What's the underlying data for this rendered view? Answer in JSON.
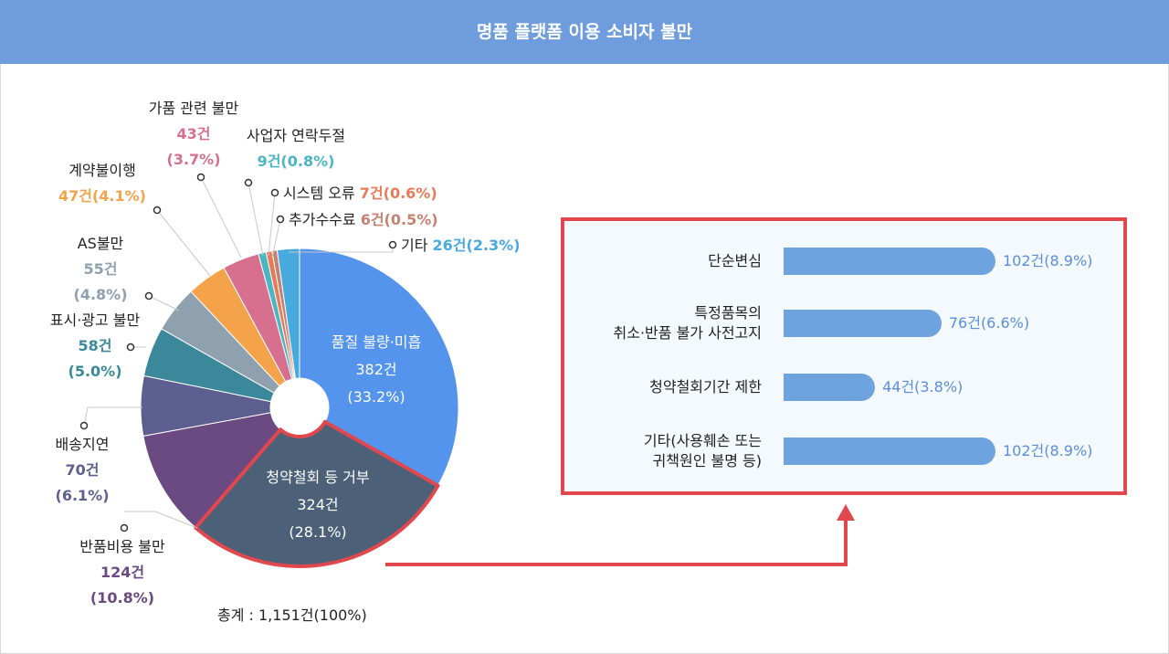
{
  "title": "명품 플랫폼 이용 소비자 불만",
  "total": "총계 : 1,151건(100%)",
  "chart_data": {
    "type": "pie",
    "title": "명품 플랫폼 이용 소비자 불만",
    "total": 1151,
    "slices": [
      {
        "name": "품질 불량·미흡",
        "value": 382,
        "count": "382건",
        "pct": "(33.2%)",
        "color": "#5594ec"
      },
      {
        "name": "청약철회 등 거부",
        "value": 324,
        "count": "324건",
        "pct": "(28.1%)",
        "color": "#4c6078"
      },
      {
        "name": "반품비용 불만",
        "value": 124,
        "count": "124건",
        "pct": "(10.8%)",
        "color": "#6b4a82"
      },
      {
        "name": "배송지연",
        "value": 70,
        "count": "70건",
        "pct": "(6.1%)",
        "color": "#5e5f91"
      },
      {
        "name": "표시·광고 불만",
        "value": 58,
        "count": "58건",
        "pct": "(5.0%)",
        "color": "#3a8899"
      },
      {
        "name": "AS불만",
        "value": 55,
        "count": "55건",
        "pct": "(4.8%)",
        "color": "#8fa0ae"
      },
      {
        "name": "계약불이행",
        "value": 47,
        "count": "47건",
        "pct": "(4.1%)",
        "color": "#f4a34a"
      },
      {
        "name": "가품 관련 불만",
        "value": 43,
        "count": "43건",
        "pct": "(3.7%)",
        "color": "#d7708f"
      },
      {
        "name": "사업자 연락두절",
        "value": 9,
        "count": "9건",
        "pct": "(0.8%)",
        "color": "#4bb5c4"
      },
      {
        "name": "시스템 오류",
        "value": 7,
        "count": "7건",
        "pct": "(0.6%)",
        "color": "#e77b57"
      },
      {
        "name": "추가수수료",
        "value": 6,
        "count": "6건",
        "pct": "(0.5%)",
        "color": "#c58171"
      },
      {
        "name": "기타",
        "value": 26,
        "count": "26건",
        "pct": "(2.3%)",
        "color": "#48a9de"
      }
    ],
    "detail": {
      "of": "청약철회 등 거부",
      "type": "bar",
      "items": [
        {
          "label": "단순변심",
          "value": 102,
          "text": "102건(8.9%)"
        },
        {
          "label": "특정품목의 취소·반품 불가 사전고지",
          "lines": [
            "특정품목의",
            "취소·반품 불가 사전고지"
          ],
          "value": 76,
          "text": "76건(6.6%)"
        },
        {
          "label": "청약철회기간 제한",
          "value": 44,
          "text": "44건(3.8%)"
        },
        {
          "label": "기타(사용훼손 또는 귀책원인 불명 등)",
          "lines": [
            "기타(사용훼손 또는",
            "귀책원인 불명 등)"
          ],
          "value": 102,
          "text": "102건(8.9%)"
        }
      ]
    }
  }
}
